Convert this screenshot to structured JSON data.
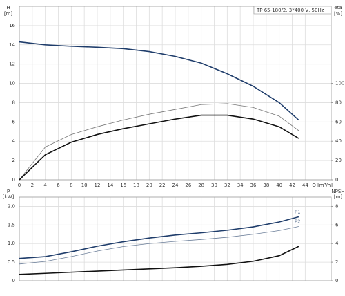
{
  "chart_data": [
    {
      "type": "line",
      "annotation": "TP 65-180/2, 3*400 V, 50Hz",
      "ylabel": "H",
      "yunit": "[m]",
      "y2label": "eta",
      "y2unit": "[%]",
      "xlabel": "Q [m³/h]",
      "xlim": [
        0,
        48
      ],
      "xticks": [
        0,
        2,
        4,
        6,
        8,
        10,
        12,
        14,
        16,
        18,
        20,
        22,
        24,
        26,
        28,
        30,
        32,
        34,
        36,
        38,
        40,
        42,
        44
      ],
      "xtick_labels": true,
      "ylim": [
        0,
        18
      ],
      "yticks": [
        0,
        2,
        4,
        6,
        8,
        10,
        12,
        14,
        16
      ],
      "y2lim": [
        0,
        180
      ],
      "y2ticks": [
        0,
        20,
        40,
        60,
        80,
        100
      ],
      "grid": true,
      "x": [
        0,
        4,
        8,
        12,
        16,
        20,
        24,
        28,
        32,
        36,
        40,
        43
      ],
      "series": [
        {
          "color": "#1f3d6b",
          "width": 1.6,
          "values": [
            14.3,
            14.0,
            13.85,
            13.75,
            13.6,
            13.3,
            12.8,
            12.1,
            11.0,
            9.7,
            8.0,
            6.2
          ]
        },
        {
          "color": "#777777",
          "width": 0.8,
          "axis": "y2",
          "values": [
            0,
            34,
            47,
            55,
            62,
            68,
            73,
            78,
            79,
            75,
            66,
            51
          ]
        },
        {
          "color": "#111111",
          "width": 1.6,
          "axis": "y2",
          "values": [
            0,
            26,
            39,
            47,
            53,
            58,
            63,
            67,
            67,
            63,
            55,
            43
          ]
        }
      ]
    },
    {
      "type": "line",
      "ylabel": "P",
      "yunit": "[kW]",
      "y2label": "NPSH",
      "y2unit": "[m]",
      "xlim": [
        0,
        48
      ],
      "xticks": [
        0,
        2,
        4,
        6,
        8,
        10,
        12,
        14,
        16,
        18,
        20,
        22,
        24,
        26,
        28,
        30,
        32,
        34,
        36,
        38,
        40,
        42,
        44
      ],
      "xtick_labels": false,
      "ylim": [
        0,
        2.25
      ],
      "yticks": [
        0,
        0.5,
        {
          "value": 1,
          "label": "1.0"
        },
        1.5,
        {
          "value": 2,
          "label": "2.0"
        }
      ],
      "y2lim": [
        0,
        9
      ],
      "y2ticks": [
        0,
        2,
        4,
        6,
        8
      ],
      "grid": true,
      "x": [
        0,
        4,
        8,
        12,
        16,
        20,
        24,
        28,
        32,
        36,
        40,
        43
      ],
      "series": [
        {
          "name": "P1",
          "color": "#1f3d6b",
          "width": 1.6,
          "values": [
            0.6,
            0.65,
            0.78,
            0.93,
            1.05,
            1.15,
            1.23,
            1.29,
            1.36,
            1.45,
            1.58,
            1.72
          ]
        },
        {
          "name": "P2",
          "color": "#6a7d98",
          "width": 0.8,
          "values": [
            0.45,
            0.52,
            0.65,
            0.8,
            0.92,
            1.0,
            1.06,
            1.11,
            1.17,
            1.25,
            1.35,
            1.46
          ]
        },
        {
          "color": "#111111",
          "width": 1.6,
          "axis": "y2",
          "values": [
            0.68,
            0.8,
            0.92,
            1.04,
            1.16,
            1.28,
            1.4,
            1.56,
            1.76,
            2.1,
            2.7,
            3.7
          ]
        }
      ]
    }
  ]
}
